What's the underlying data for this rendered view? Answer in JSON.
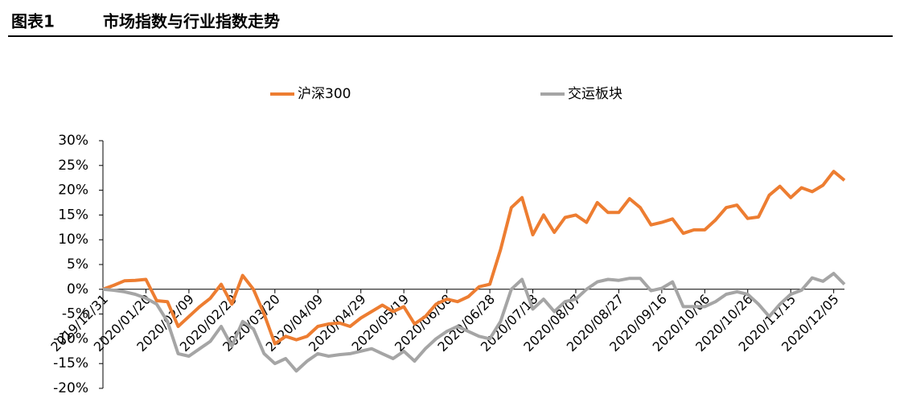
{
  "chart_data": {
    "type": "line",
    "title_label": "图表1",
    "title": "市场指数与行业指数走势",
    "legend": "top",
    "categories": [
      "2019/12/31",
      null,
      null,
      null,
      "2020/01/20",
      null,
      null,
      null,
      "2020/02/09",
      null,
      null,
      null,
      "2020/02/29",
      null,
      null,
      null,
      "2020/03/20",
      null,
      null,
      null,
      "2020/04/09",
      null,
      null,
      null,
      "2020/04/29",
      null,
      null,
      null,
      "2020/05/19",
      null,
      null,
      null,
      "2020/06/08",
      null,
      null,
      null,
      "2020/06/28",
      null,
      null,
      null,
      "2020/07/18",
      null,
      null,
      null,
      "2020/08/07",
      null,
      null,
      null,
      "2020/08/27",
      null,
      null,
      null,
      "2020/09/16",
      null,
      null,
      null,
      "2020/10/06",
      null,
      null,
      null,
      "2020/10/26",
      null,
      null,
      null,
      "2020/11/15",
      null,
      null,
      null,
      "2020/12/05",
      null
    ],
    "series": [
      {
        "name": "沪深300",
        "color": "#ed7d31",
        "values": [
          0,
          0.8,
          1.7,
          1.8,
          2.0,
          -2.3,
          -2.5,
          -7.5,
          -5.5,
          -3.5,
          -1.8,
          1.0,
          -3,
          2.8,
          0,
          -5,
          -11,
          -9.5,
          -10.2,
          -9.5,
          -7.5,
          -7,
          -6.8,
          -7.5,
          -5.8,
          -4.5,
          -3.2,
          -4.5,
          -3.5,
          -7,
          -5.5,
          -3,
          -2,
          -2.5,
          -1.5,
          0.5,
          1,
          8,
          16.5,
          18.5,
          11,
          15,
          11.5,
          14.5,
          15,
          13.5,
          17.5,
          15.5,
          15.5,
          18.3,
          16.5,
          13,
          13.5,
          14.2,
          11.3,
          12,
          12,
          14,
          16.5,
          17,
          14.3,
          14.6,
          19,
          20.8,
          18.5,
          20.5,
          19.7,
          21,
          23.8,
          22
        ]
      },
      {
        "name": "交运板块",
        "color": "#a5a5a5",
        "values": [
          0,
          -0.2,
          -0.5,
          -1,
          -1.8,
          -3,
          -6.5,
          -13,
          -13.5,
          -12,
          -10.5,
          -7.5,
          -11.5,
          -6.5,
          -8,
          -13,
          -15,
          -14,
          -16.5,
          -14.5,
          -13,
          -13.5,
          -13.2,
          -13,
          -12.5,
          -12,
          -13,
          -14,
          -12.5,
          -14.5,
          -12,
          -10,
          -8.5,
          -7.5,
          -8.5,
          -9.5,
          -10,
          -6.5,
          0,
          2,
          -4,
          -2,
          -4.5,
          -2.5,
          -2,
          0,
          1.5,
          2,
          1.8,
          2.2,
          2.2,
          -0.3,
          0.2,
          1.5,
          -3.5,
          -3.5,
          -3.5,
          -2.5,
          -1,
          -0.5,
          -1,
          -3,
          -5.5,
          -3,
          -1,
          -0.2,
          2.3,
          1.6,
          3.2,
          1.0
        ]
      }
    ],
    "ylim": [
      -20,
      30
    ],
    "yticks": [
      {
        "value": -20,
        "label": "-20%"
      },
      {
        "value": -15,
        "label": "-15%"
      },
      {
        "value": -10,
        "label": "-10%"
      },
      {
        "value": -5,
        "label": "-5%"
      },
      {
        "value": 0,
        "label": "0%"
      },
      {
        "value": 5,
        "label": "5%"
      },
      {
        "value": 10,
        "label": "10%"
      },
      {
        "value": 15,
        "label": "15%"
      },
      {
        "value": 20,
        "label": "20%"
      },
      {
        "value": 25,
        "label": "25%"
      },
      {
        "value": 30,
        "label": "30%"
      }
    ]
  }
}
